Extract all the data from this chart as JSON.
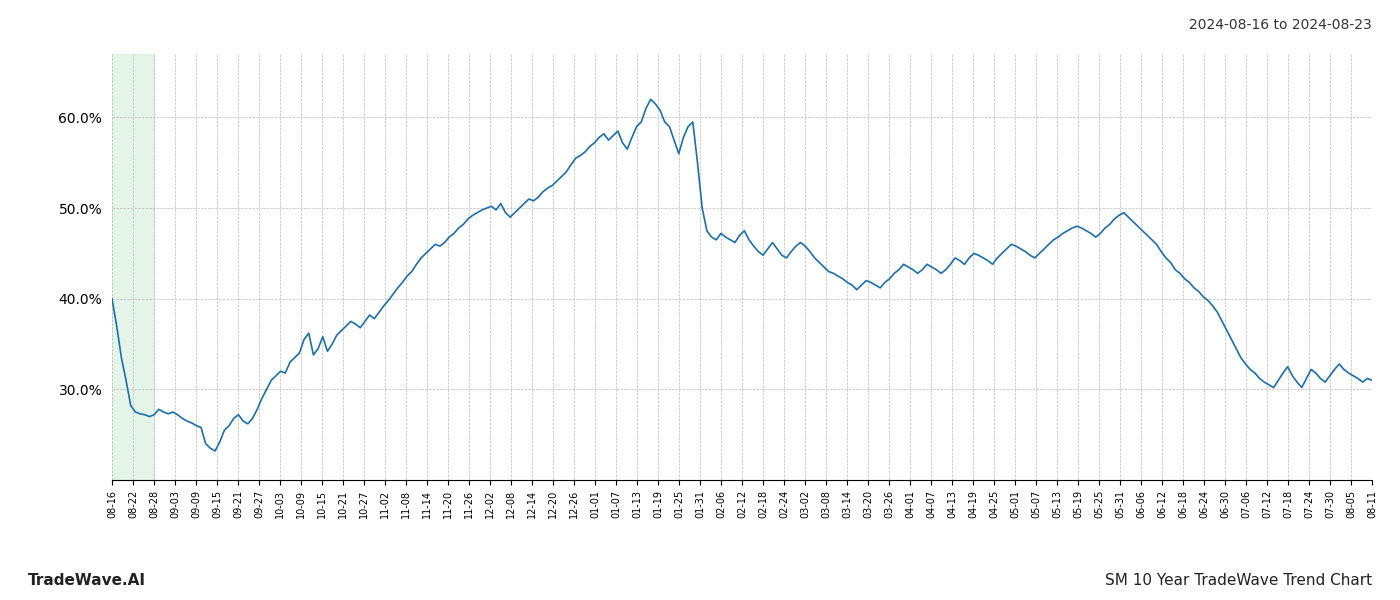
{
  "title_right": "2024-08-16 to 2024-08-23",
  "footer_left": "TradeWave.AI",
  "footer_right": "SM 10 Year TradeWave Trend Chart",
  "ylim": [
    0.2,
    0.67
  ],
  "yticks": [
    0.3,
    0.4,
    0.5,
    0.6
  ],
  "line_color": "#1a6faf",
  "line_width": 1.2,
  "highlight_color": "#d4edda",
  "background_color": "#ffffff",
  "grid_color": "#bbbbbb",
  "x_labels": [
    "08-16",
    "08-22",
    "08-28",
    "09-03",
    "09-09",
    "09-15",
    "09-21",
    "09-27",
    "10-03",
    "10-09",
    "10-15",
    "10-21",
    "10-27",
    "11-02",
    "11-08",
    "11-14",
    "11-20",
    "11-26",
    "12-02",
    "12-08",
    "12-14",
    "12-20",
    "12-26",
    "01-01",
    "01-07",
    "01-13",
    "01-19",
    "01-25",
    "01-31",
    "02-06",
    "02-12",
    "02-18",
    "02-24",
    "03-02",
    "03-08",
    "03-14",
    "03-20",
    "03-26",
    "04-01",
    "04-07",
    "04-13",
    "04-19",
    "04-25",
    "05-01",
    "05-07",
    "05-13",
    "05-19",
    "05-25",
    "05-31",
    "06-06",
    "06-12",
    "06-18",
    "06-24",
    "06-30",
    "07-06",
    "07-12",
    "07-18",
    "07-24",
    "07-30",
    "08-05",
    "08-11"
  ],
  "values": [
    0.4,
    0.37,
    0.335,
    0.31,
    0.282,
    0.275,
    0.273,
    0.272,
    0.27,
    0.272,
    0.278,
    0.275,
    0.273,
    0.275,
    0.272,
    0.268,
    0.265,
    0.263,
    0.26,
    0.258,
    0.24,
    0.235,
    0.232,
    0.242,
    0.255,
    0.26,
    0.268,
    0.272,
    0.265,
    0.262,
    0.268,
    0.278,
    0.29,
    0.3,
    0.31,
    0.315,
    0.32,
    0.318,
    0.33,
    0.335,
    0.34,
    0.355,
    0.362,
    0.338,
    0.345,
    0.358,
    0.342,
    0.35,
    0.36,
    0.365,
    0.37,
    0.375,
    0.372,
    0.368,
    0.375,
    0.382,
    0.378,
    0.385,
    0.392,
    0.398,
    0.405,
    0.412,
    0.418,
    0.425,
    0.43,
    0.438,
    0.445,
    0.45,
    0.455,
    0.46,
    0.458,
    0.462,
    0.468,
    0.472,
    0.478,
    0.482,
    0.488,
    0.492,
    0.495,
    0.498,
    0.5,
    0.502,
    0.498,
    0.505,
    0.495,
    0.49,
    0.495,
    0.5,
    0.505,
    0.51,
    0.508,
    0.512,
    0.518,
    0.522,
    0.525,
    0.53,
    0.535,
    0.54,
    0.548,
    0.555,
    0.558,
    0.562,
    0.568,
    0.572,
    0.578,
    0.582,
    0.575,
    0.58,
    0.585,
    0.572,
    0.565,
    0.578,
    0.59,
    0.595,
    0.61,
    0.62,
    0.615,
    0.608,
    0.595,
    0.59,
    0.575,
    0.56,
    0.578,
    0.59,
    0.595,
    0.55,
    0.5,
    0.475,
    0.468,
    0.465,
    0.472,
    0.468,
    0.465,
    0.462,
    0.47,
    0.475,
    0.465,
    0.458,
    0.452,
    0.448,
    0.455,
    0.462,
    0.455,
    0.448,
    0.445,
    0.452,
    0.458,
    0.462,
    0.458,
    0.452,
    0.445,
    0.44,
    0.435,
    0.43,
    0.428,
    0.425,
    0.422,
    0.418,
    0.415,
    0.41,
    0.415,
    0.42,
    0.418,
    0.415,
    0.412,
    0.418,
    0.422,
    0.428,
    0.432,
    0.438,
    0.435,
    0.432,
    0.428,
    0.432,
    0.438,
    0.435,
    0.432,
    0.428,
    0.432,
    0.438,
    0.445,
    0.442,
    0.438,
    0.445,
    0.45,
    0.448,
    0.445,
    0.442,
    0.438,
    0.445,
    0.45,
    0.455,
    0.46,
    0.458,
    0.455,
    0.452,
    0.448,
    0.445,
    0.45,
    0.455,
    0.46,
    0.465,
    0.468,
    0.472,
    0.475,
    0.478,
    0.48,
    0.478,
    0.475,
    0.472,
    0.468,
    0.472,
    0.478,
    0.482,
    0.488,
    0.492,
    0.495,
    0.49,
    0.485,
    0.48,
    0.475,
    0.47,
    0.465,
    0.46,
    0.452,
    0.445,
    0.44,
    0.432,
    0.428,
    0.422,
    0.418,
    0.412,
    0.408,
    0.402,
    0.398,
    0.392,
    0.385,
    0.375,
    0.365,
    0.355,
    0.345,
    0.335,
    0.328,
    0.322,
    0.318,
    0.312,
    0.308,
    0.305,
    0.302,
    0.31,
    0.318,
    0.325,
    0.315,
    0.308,
    0.302,
    0.312,
    0.322,
    0.318,
    0.312,
    0.308,
    0.315,
    0.322,
    0.328,
    0.322,
    0.318,
    0.315,
    0.312,
    0.308,
    0.312,
    0.31
  ]
}
